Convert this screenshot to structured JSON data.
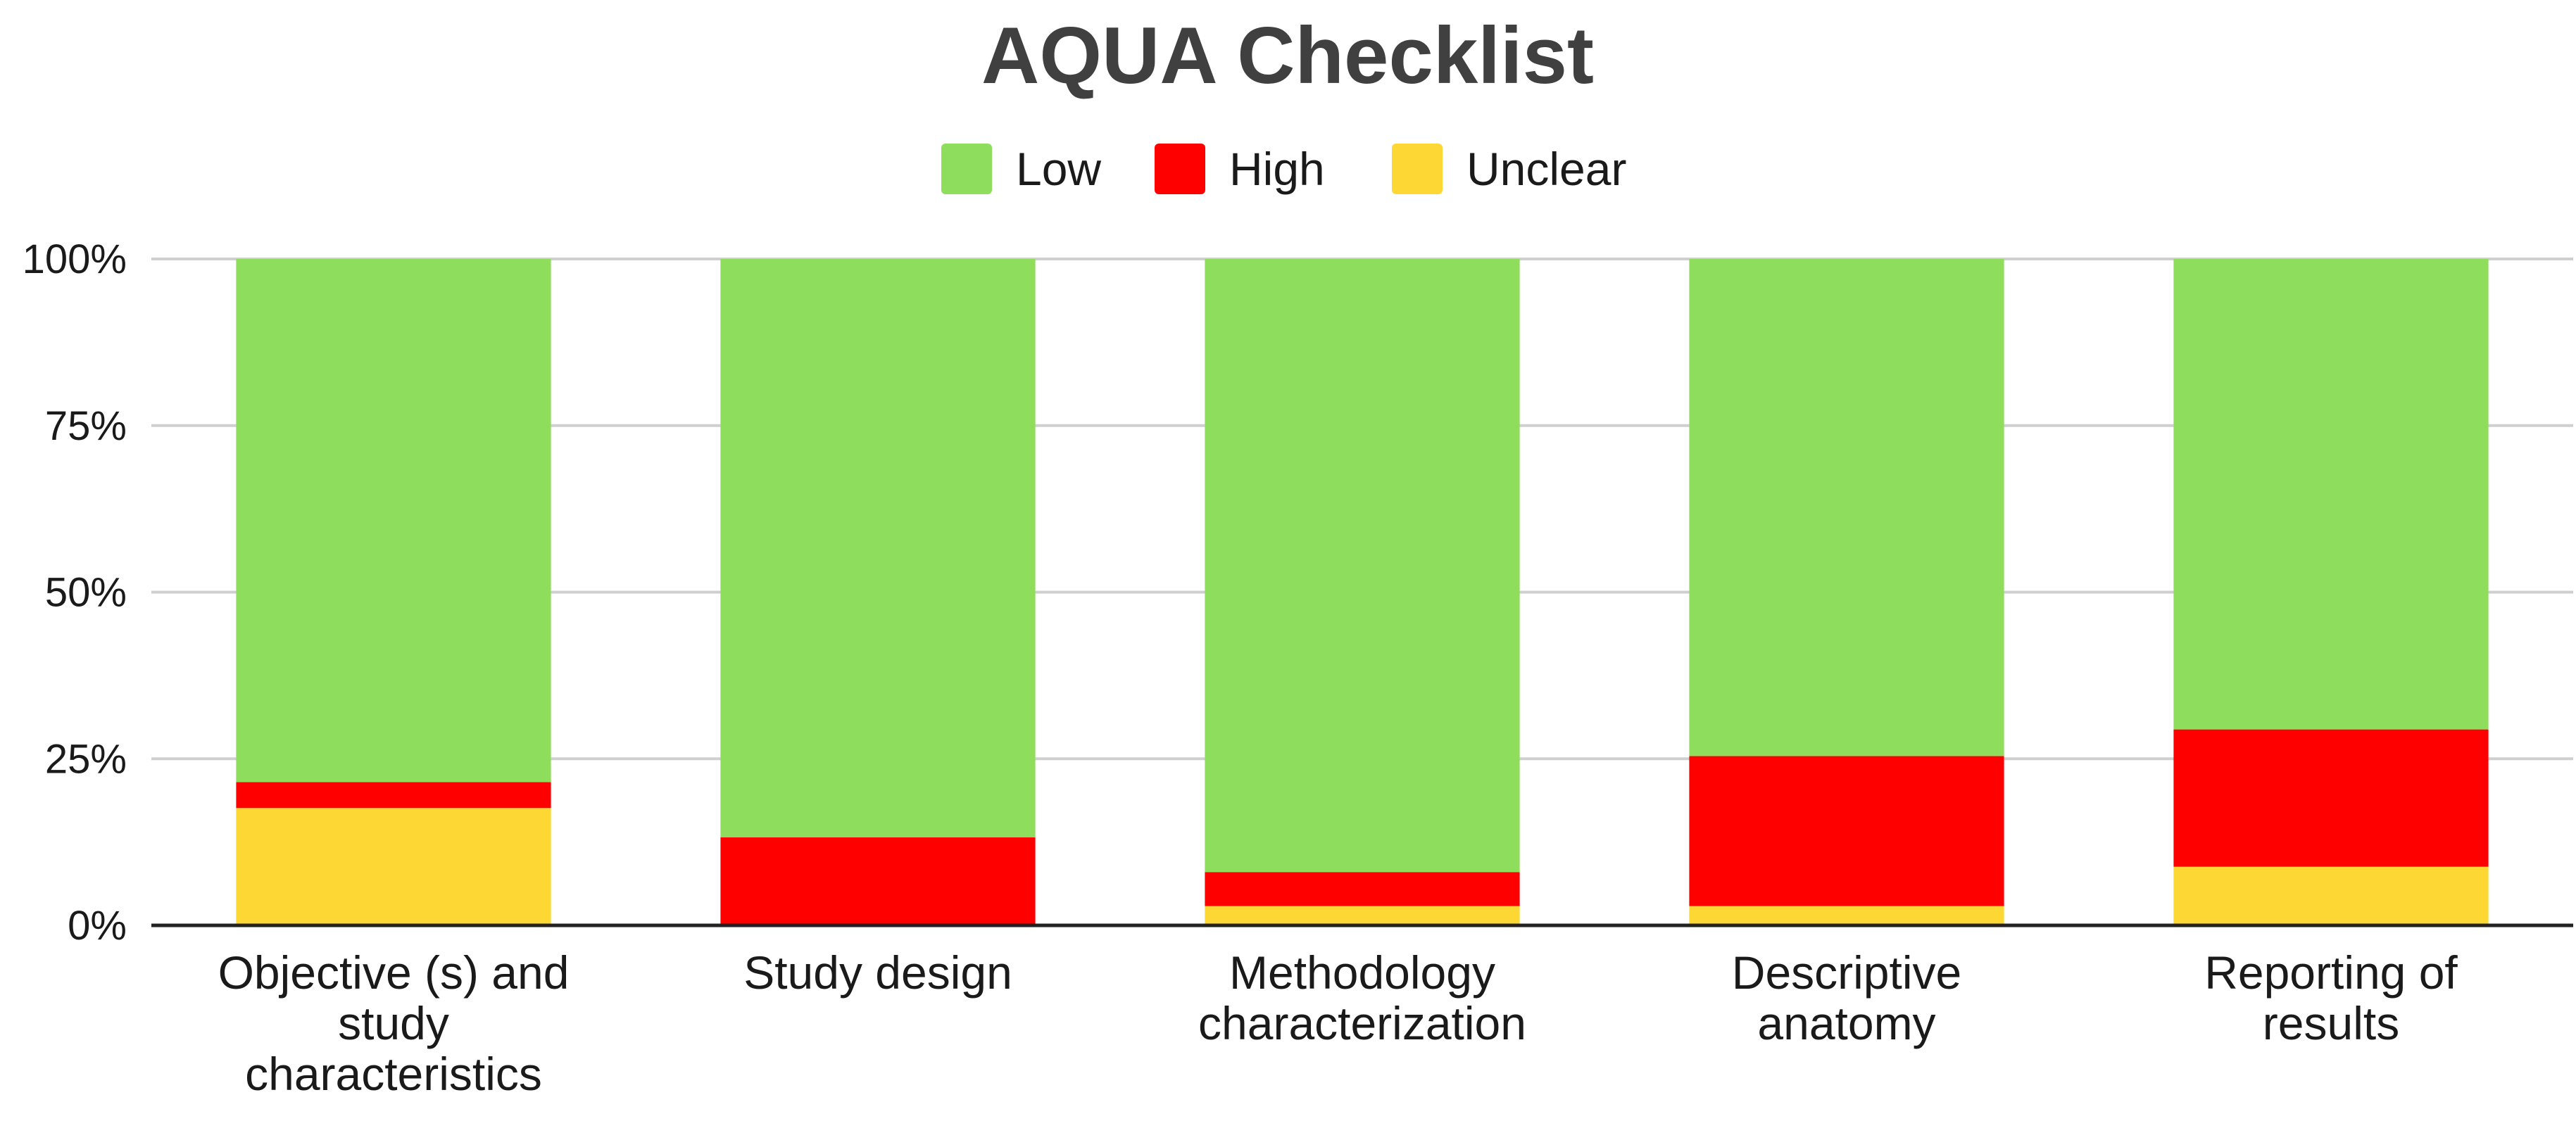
{
  "chart_data": {
    "type": "bar",
    "stacked": true,
    "title": "AQUA Checklist",
    "xlabel": "",
    "ylabel": "",
    "ylim": [
      0,
      100
    ],
    "y_tick_labels": [
      "0%",
      "25%",
      "50%",
      "75%",
      "100%"
    ],
    "y_tick_values": [
      0,
      25,
      50,
      75,
      100
    ],
    "grid": true,
    "legend_position": "top-center",
    "categories": [
      "Objective (s) and study characteristics",
      "Study design",
      "Methodology characterization",
      "Descriptive anatomy",
      "Reporting of results"
    ],
    "category_lines": [
      [
        "Objective (s) and",
        "study",
        "characteristics"
      ],
      [
        "Study design"
      ],
      [
        "Methodology",
        "characterization"
      ],
      [
        "Descriptive",
        "anatomy"
      ],
      [
        "Reporting of",
        "results"
      ]
    ],
    "series": [
      {
        "name": "Unclear",
        "color": "#FDD835",
        "values": [
          17.6,
          0,
          2.9,
          2.9,
          8.8
        ]
      },
      {
        "name": "High",
        "color": "#FF0000",
        "values": [
          3.9,
          13.2,
          5.1,
          22.5,
          20.6
        ]
      },
      {
        "name": "Low",
        "color": "#8FDD5C",
        "values": [
          78.5,
          86.8,
          92.0,
          74.6,
          70.6
        ]
      }
    ],
    "legend_order": [
      "Low",
      "High",
      "Unclear"
    ]
  }
}
